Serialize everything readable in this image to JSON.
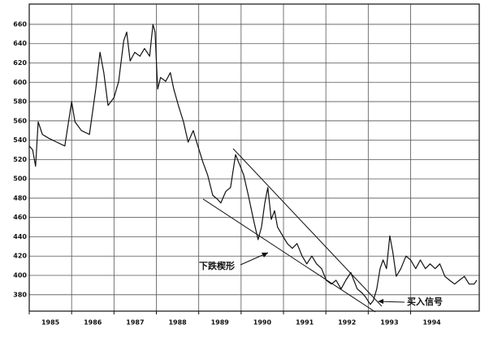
{
  "chart_data": {
    "type": "line",
    "color": "#111111",
    "grid": true,
    "x": [
      1985.0,
      1985.08,
      1985.15,
      1985.21,
      1985.31,
      1985.46,
      1985.65,
      1985.84,
      1986.0,
      1986.08,
      1986.23,
      1986.42,
      1986.57,
      1986.67,
      1986.76,
      1986.86,
      1987.0,
      1987.11,
      1987.23,
      1987.3,
      1987.38,
      1987.49,
      1987.61,
      1987.72,
      1987.84,
      1987.92,
      1987.97,
      1988.03,
      1988.1,
      1988.22,
      1988.33,
      1988.41,
      1988.52,
      1988.64,
      1988.75,
      1988.87,
      1988.98,
      1989.1,
      1989.21,
      1989.33,
      1989.44,
      1989.52,
      1989.64,
      1989.75,
      1989.87,
      1989.98,
      1990.06,
      1990.17,
      1990.29,
      1990.4,
      1990.48,
      1990.56,
      1990.63,
      1990.71,
      1990.79,
      1990.86,
      1990.98,
      1991.09,
      1991.21,
      1991.32,
      1991.44,
      1991.55,
      1991.67,
      1991.78,
      1991.9,
      1992.01,
      1992.13,
      1992.24,
      1992.36,
      1992.47,
      1992.59,
      1992.66,
      1992.74,
      1992.85,
      1992.93,
      1993.05,
      1993.12,
      1993.2,
      1993.28,
      1993.35,
      1993.43,
      1993.51,
      1993.58,
      1993.66,
      1993.77,
      1993.89,
      1994.0,
      1994.12,
      1994.23,
      1994.35,
      1994.46,
      1994.58,
      1994.69,
      1994.81,
      1994.92,
      1995.04,
      1995.15,
      1995.27,
      1995.38,
      1995.5,
      1995.56
    ],
    "values": [
      534,
      530,
      513,
      559,
      546,
      542,
      538,
      534,
      580,
      559,
      550,
      546,
      593,
      631,
      610,
      576,
      584,
      601,
      643,
      652,
      622,
      631,
      627,
      635,
      627,
      660,
      652,
      593,
      605,
      601,
      610,
      593,
      576,
      559,
      538,
      550,
      534,
      517,
      504,
      483,
      479,
      475,
      487,
      491,
      525,
      513,
      504,
      483,
      458,
      437,
      450,
      475,
      491,
      458,
      467,
      450,
      441,
      433,
      428,
      433,
      420,
      412,
      420,
      412,
      407,
      395,
      391,
      395,
      386,
      395,
      403,
      395,
      386,
      382,
      378,
      370,
      374,
      386,
      407,
      416,
      407,
      441,
      424,
      399,
      407,
      420,
      416,
      407,
      416,
      407,
      412,
      407,
      412,
      399,
      395,
      391,
      395,
      399,
      391,
      391,
      395
    ],
    "xlim": [
      1985,
      1995.62
    ],
    "ylim": [
      363,
      681
    ],
    "xticks": [
      {
        "value": 1985,
        "label": "1985"
      },
      {
        "value": 1986,
        "label": "1986"
      },
      {
        "value": 1987,
        "label": "1987"
      },
      {
        "value": 1988,
        "label": "1988"
      },
      {
        "value": 1989,
        "label": "1989"
      },
      {
        "value": 1990,
        "label": "1990"
      },
      {
        "value": 1991,
        "label": "1991"
      },
      {
        "value": 1992,
        "label": "1992"
      },
      {
        "value": 1993,
        "label": "1993"
      },
      {
        "value": 1994,
        "label": "1994"
      }
    ],
    "yticks": [
      380,
      400,
      420,
      440,
      460,
      480,
      500,
      520,
      540,
      560,
      580,
      600,
      620,
      640,
      660
    ],
    "annotations": [
      "下跌楔形",
      "买入信号"
    ]
  }
}
